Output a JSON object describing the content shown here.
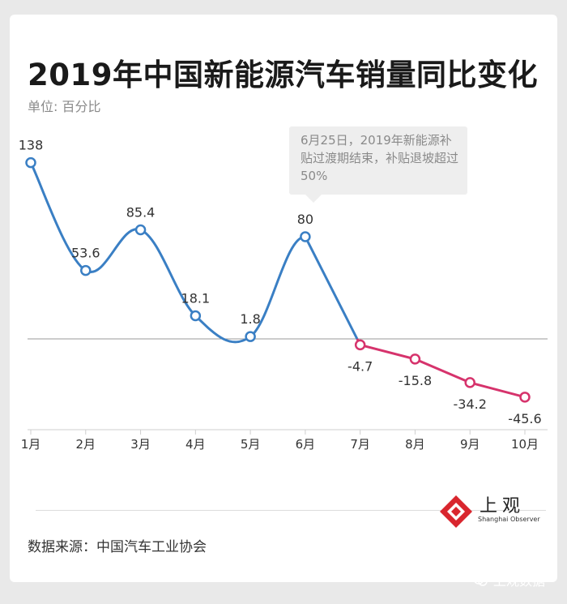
{
  "title": "2019年中国新能源汽车销量同比变化",
  "unit_label": "单位: 百分比",
  "annotation": "6月25日，2019年新能源补贴过渡期结束，补贴退坡超过50%",
  "source": "数据来源：中国汽车工业协会",
  "logo": {
    "cn": "上观",
    "en": "Shanghai Observer"
  },
  "watermark": "上观数据",
  "colors": {
    "positive": "#3a7fc4",
    "negative": "#d6336c",
    "zero_line": "#9a9a9a",
    "logo": "#d9262e"
  },
  "chart_data": {
    "type": "line",
    "title": "2019年中国新能源汽车销量同比变化",
    "unit": "单位: 百分比",
    "categories": [
      "1月",
      "2月",
      "3月",
      "4月",
      "5月",
      "6月",
      "7月",
      "8月",
      "9月",
      "10月"
    ],
    "values": [
      138,
      53.6,
      85.4,
      18.1,
      1.8,
      80,
      -4.7,
      -15.8,
      -34.2,
      -45.6
    ],
    "labels": [
      "138",
      "53.6",
      "85.4",
      "18.1",
      "1.8",
      "80",
      "-4.7",
      "-15.8",
      "-34.2",
      "-45.6"
    ],
    "zero_line": true,
    "grid": false,
    "legend": "none"
  }
}
